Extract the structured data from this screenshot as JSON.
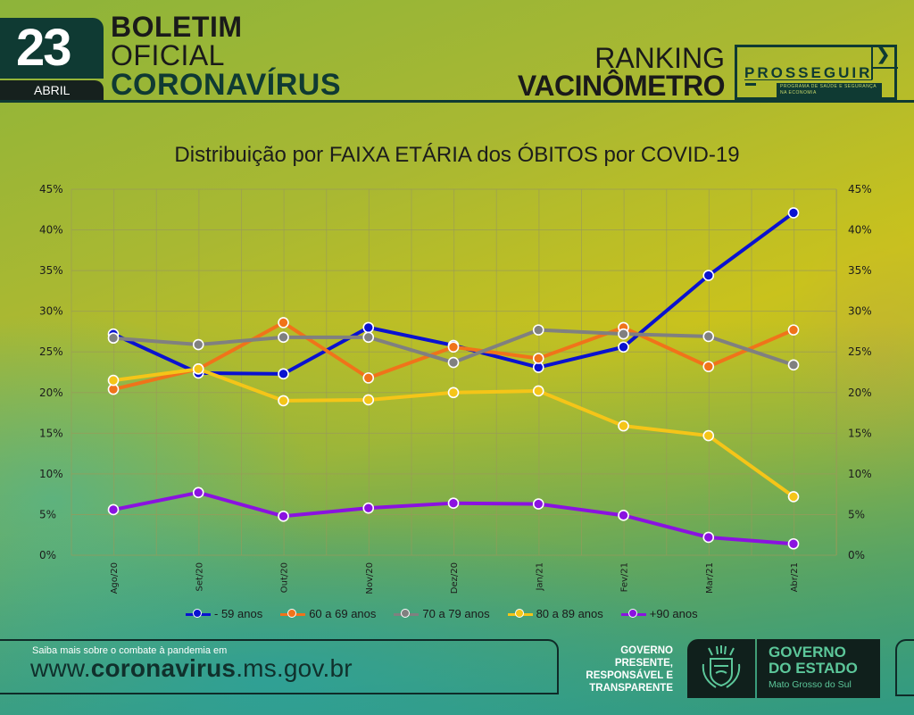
{
  "header": {
    "day": "23",
    "month": "ABRIL",
    "title_line1": "BOLETIM",
    "title_line2": "OFICIAL",
    "title_line3": "CORONAVÍRUS",
    "ranking_line1": "RANKING",
    "ranking_line2": "VACINÔMETRO",
    "badge_word": "PROSSEGUIR",
    "badge_sub": "PROGRAMA DE SAÚDE E SEGURANÇA NA ECONOMIA",
    "badge_icon": "chevron-right-icon"
  },
  "chart_data": {
    "type": "line",
    "title": "Distribuição por FAIXA ETÁRIA dos ÓBITOS por COVID-19",
    "xlabel": "",
    "ylabel": "",
    "ylim": [
      0,
      45
    ],
    "yticks": [
      "0%",
      "5%",
      "10%",
      "15%",
      "20%",
      "25%",
      "30%",
      "35%",
      "40%",
      "45%"
    ],
    "y_axis_both_sides": true,
    "grid": true,
    "legend_position": "bottom",
    "categories": [
      "Ago/20",
      "Set/20",
      "Out/20",
      "Nov/20",
      "Dez/20",
      "Jan/21",
      "Fev/21",
      "Mar/21",
      "Abr/21"
    ],
    "series": [
      {
        "name": "- 59 anos",
        "color": "#0a12d0",
        "values": [
          27.2,
          22.4,
          22.3,
          28.0,
          25.8,
          23.1,
          25.6,
          34.4,
          42.1
        ]
      },
      {
        "name": "60 a 69 anos",
        "color": "#f0731a",
        "values": [
          20.4,
          22.9,
          28.6,
          21.8,
          25.6,
          24.2,
          28.0,
          23.2,
          27.7
        ]
      },
      {
        "name": "70 a 79 anos",
        "color": "#808080",
        "values": [
          26.7,
          25.9,
          26.8,
          26.8,
          23.7,
          27.7,
          27.2,
          26.9,
          23.4
        ]
      },
      {
        "name": "80 a 89 anos",
        "color": "#f5c518",
        "values": [
          21.5,
          22.9,
          19.0,
          19.1,
          20.0,
          20.2,
          15.9,
          14.7,
          7.2
        ]
      },
      {
        "name": "+90 anos",
        "color": "#8a12e0",
        "values": [
          5.6,
          7.7,
          4.8,
          5.8,
          6.4,
          6.3,
          4.9,
          2.2,
          1.4
        ]
      }
    ]
  },
  "footer": {
    "info_text": "Saiba mais sobre o combate à pandemia em",
    "url_prefix": "www.",
    "url_bold": "coronavirus",
    "url_suffix": ".ms.gov.br",
    "gov_tagline_1": "GOVERNO",
    "gov_tagline_2": "PRESENTE,",
    "gov_tagline_3": "RESPONSÁVEL E",
    "gov_tagline_4": "TRANSPARENTE",
    "gov_state_line1": "GOVERNO",
    "gov_state_line2": "DO ESTADO",
    "gov_state_sub": "Mato Grosso do Sul",
    "seal_icon": "state-coat-of-arms-icon"
  }
}
